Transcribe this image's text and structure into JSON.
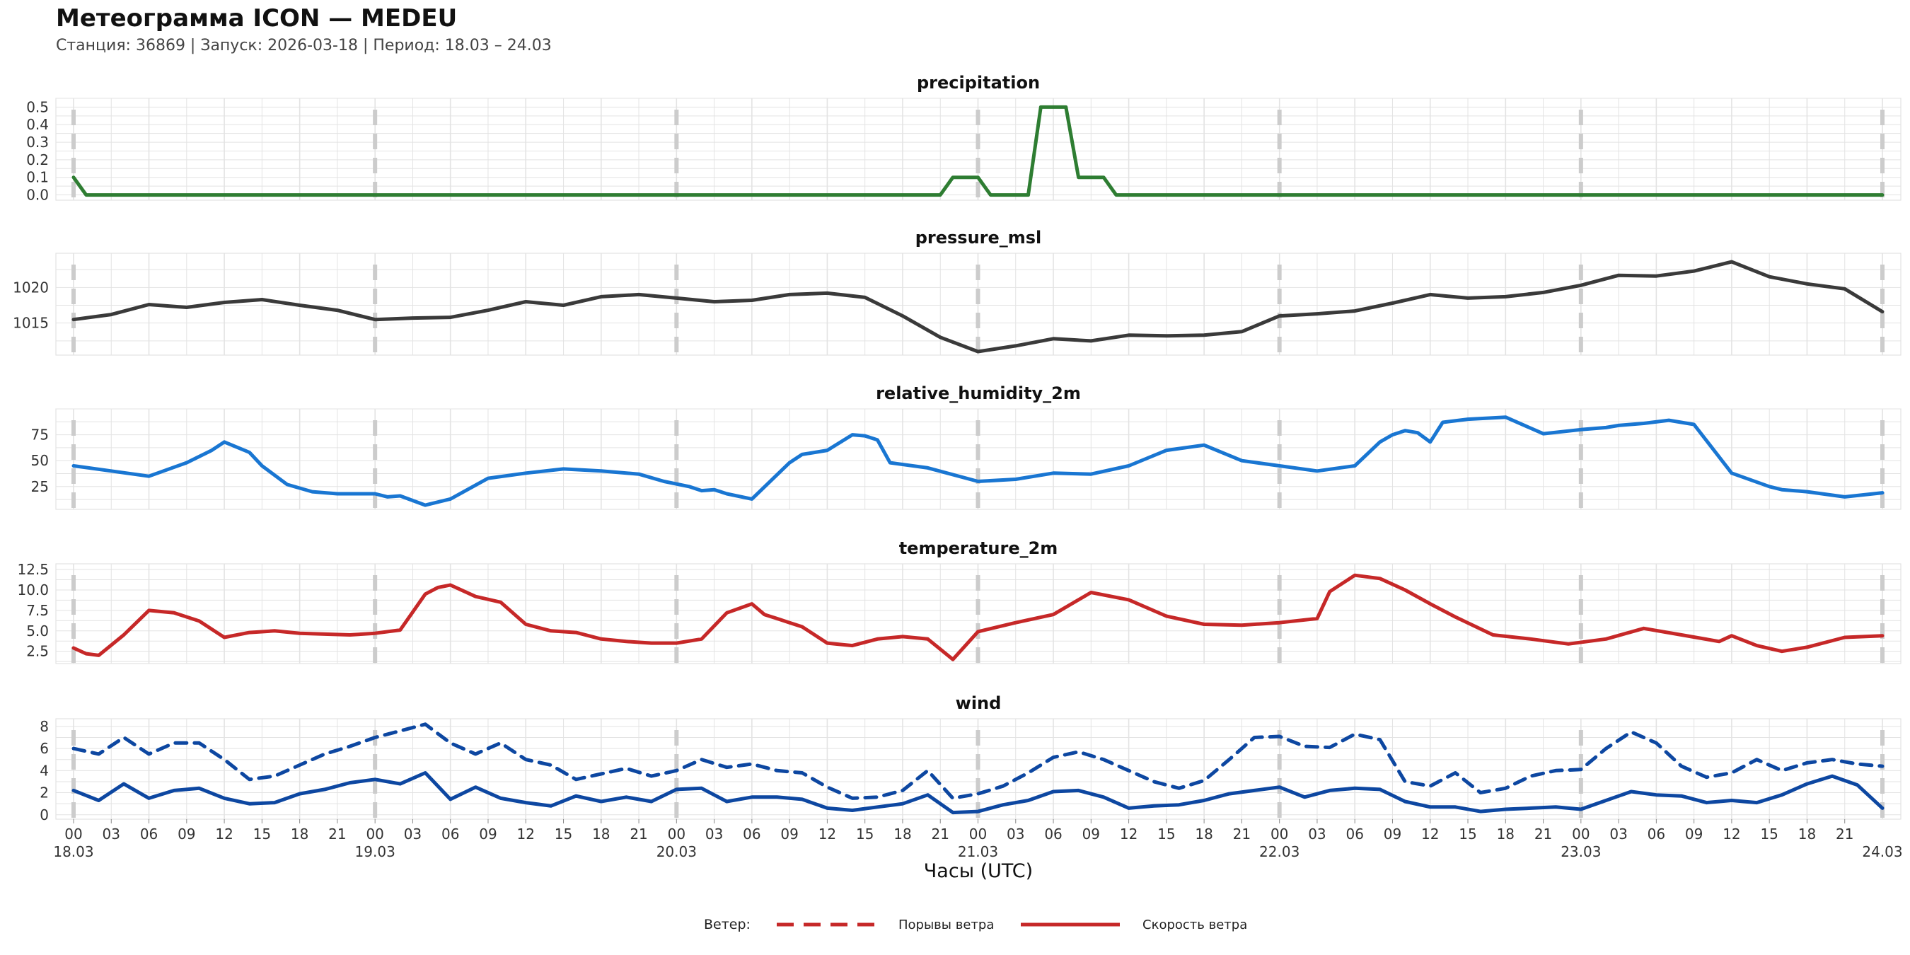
{
  "header": {
    "title": "Метеограмма ICON — MEDEU",
    "subtitle": "Станция: 36869  | Запуск: 2026-03-18  | Период: 18.03 – 24.03"
  },
  "colors": {
    "precipitation": "#2e7d32",
    "pressure": "#3a3a3a",
    "humidity": "#1976d2",
    "temperature": "#c62828",
    "wind": "#0d47a1",
    "legend_line": "#c62828",
    "grid": "#e3e3e3",
    "day_marker": "#cccccc"
  },
  "chart_data": [
    {
      "type": "line",
      "title": "precipitation",
      "ylim": [
        -0.03,
        0.55
      ],
      "yticks": [
        0.0,
        0.1,
        0.2,
        0.3,
        0.4,
        0.5
      ],
      "ytick_labels": [
        "0.0",
        "0.1",
        "0.2",
        "0.3",
        "0.4",
        "0.5"
      ],
      "series": [
        {
          "name": "precipitation",
          "x": [
            0,
            1,
            69,
            70,
            72,
            73,
            76,
            77,
            79,
            80,
            82,
            83,
            144
          ],
          "y": [
            0.1,
            0,
            0,
            0.1,
            0.1,
            0,
            0,
            0.5,
            0.5,
            0.1,
            0.1,
            0,
            0
          ]
        }
      ]
    },
    {
      "type": "line",
      "title": "pressure_msl",
      "ylim": [
        1010.5,
        1024.8
      ],
      "yticks": [
        1015,
        1020
      ],
      "ytick_labels": [
        "1015",
        "1020"
      ],
      "series": [
        {
          "name": "pressure_msl",
          "x": [
            0,
            3,
            6,
            9,
            12,
            15,
            18,
            21,
            24,
            27,
            30,
            33,
            36,
            39,
            42,
            45,
            48,
            51,
            54,
            57,
            60,
            63,
            66,
            69,
            72,
            75,
            78,
            81,
            84,
            87,
            90,
            93,
            96,
            99,
            102,
            105,
            108,
            111,
            114,
            117,
            120,
            123,
            126,
            129,
            132,
            135,
            138,
            141,
            144
          ],
          "y": [
            1015.5,
            1016.2,
            1017.6,
            1017.2,
            1017.9,
            1018.3,
            1017.5,
            1016.8,
            1015.5,
            1015.7,
            1015.8,
            1016.8,
            1018,
            1017.5,
            1018.7,
            1019,
            1018.5,
            1018,
            1018.2,
            1019,
            1019.2,
            1018.6,
            1016,
            1013,
            1011,
            1011.8,
            1012.8,
            1012.5,
            1013.3,
            1013.2,
            1013.3,
            1013.8,
            1016,
            1016.3,
            1016.7,
            1017.8,
            1019,
            1018.5,
            1018.7,
            1019.3,
            1020.3,
            1021.7,
            1021.6,
            1022.3,
            1023.6,
            1021.5,
            1020.5,
            1019.8,
            1016.6
          ]
        }
      ]
    },
    {
      "type": "line",
      "title": "relative_humidity_2m",
      "ylim": [
        3,
        100
      ],
      "yticks": [
        25,
        50,
        75
      ],
      "ytick_labels": [
        "25",
        "50",
        "75"
      ],
      "series": [
        {
          "name": "relative_humidity_2m",
          "x": [
            0,
            3,
            6,
            9,
            11,
            12,
            14,
            15,
            17,
            19,
            21,
            23,
            24,
            25,
            26,
            28,
            30,
            33,
            36,
            39,
            42,
            45,
            47,
            49,
            50,
            51,
            52,
            54,
            57,
            58,
            60,
            62,
            63,
            64,
            65,
            68,
            72,
            75,
            78,
            81,
            84,
            87,
            90,
            93,
            96,
            99,
            102,
            104,
            105,
            106,
            107,
            108,
            109,
            111,
            114,
            117,
            120,
            122,
            123,
            125,
            127,
            129,
            132,
            135,
            136,
            138,
            141,
            144
          ],
          "y": [
            45,
            40,
            35,
            48,
            60,
            68,
            58,
            45,
            27,
            20,
            18,
            18,
            18,
            15,
            16,
            7,
            13,
            33,
            38,
            42,
            40,
            37,
            30,
            25,
            21,
            22,
            18,
            13,
            48,
            56,
            60,
            75,
            74,
            70,
            48,
            43,
            30,
            32,
            38,
            37,
            45,
            60,
            65,
            50,
            45,
            40,
            45,
            68,
            75,
            79,
            77,
            68,
            87,
            90,
            92,
            76,
            80,
            82,
            84,
            86,
            89,
            85,
            38,
            25,
            22,
            20,
            15,
            19
          ]
        }
      ]
    },
    {
      "type": "line",
      "title": "temperature_2m",
      "ylim": [
        1,
        13.2
      ],
      "yticks": [
        2.5,
        5.0,
        7.5,
        10.0,
        12.5
      ],
      "ytick_labels": [
        "2.5",
        "5.0",
        "7.5",
        "10.0",
        "12.5"
      ],
      "series": [
        {
          "name": "temperature_2m",
          "x": [
            0,
            1,
            2,
            4,
            6,
            8,
            10,
            12,
            14,
            16,
            18,
            20,
            22,
            24,
            26,
            28,
            29,
            30,
            32,
            34,
            36,
            38,
            40,
            42,
            44,
            46,
            48,
            50,
            52,
            54,
            55,
            56,
            57,
            58,
            60,
            62,
            64,
            66,
            68,
            70,
            72,
            75,
            78,
            81,
            84,
            87,
            90,
            93,
            96,
            99,
            100,
            102,
            104,
            106,
            108,
            110,
            113,
            116,
            119,
            122,
            125,
            128,
            131,
            132,
            134,
            136,
            138,
            141,
            144
          ],
          "y": [
            2.9,
            2.2,
            2,
            4.5,
            7.5,
            7.2,
            6.2,
            4.2,
            4.8,
            5,
            4.7,
            4.6,
            4.5,
            4.7,
            5.1,
            9.5,
            10.3,
            10.6,
            9.2,
            8.5,
            5.8,
            5,
            4.8,
            4,
            3.7,
            3.5,
            3.5,
            4,
            7.2,
            8.3,
            7,
            6.5,
            6,
            5.5,
            3.5,
            3.2,
            4,
            4.3,
            4,
            1.5,
            4.9,
            6,
            7,
            9.7,
            8.8,
            6.8,
            5.8,
            5.7,
            6,
            6.5,
            9.8,
            11.8,
            11.4,
            10,
            8.3,
            6.7,
            4.5,
            4,
            3.4,
            4,
            5.3,
            4.5,
            3.7,
            4.4,
            3.2,
            2.5,
            3,
            4.2,
            4.4
          ]
        }
      ]
    },
    {
      "type": "line",
      "title": "wind",
      "ylim": [
        -0.4,
        8.7
      ],
      "yticks": [
        0,
        2,
        4,
        6,
        8
      ],
      "ytick_labels": [
        "0",
        "2",
        "4",
        "6",
        "8"
      ],
      "series": [
        {
          "name": "Порывы ветра",
          "style": "dashed",
          "x": [
            0,
            2,
            4,
            6,
            8,
            10,
            12,
            14,
            16,
            18,
            20,
            22,
            24,
            26,
            28,
            30,
            32,
            34,
            36,
            38,
            40,
            42,
            44,
            46,
            48,
            50,
            52,
            54,
            56,
            58,
            60,
            62,
            64,
            66,
            68,
            70,
            72,
            74,
            76,
            78,
            80,
            82,
            84,
            86,
            88,
            90,
            92,
            94,
            96,
            98,
            100,
            102,
            104,
            106,
            108,
            110,
            112,
            114,
            116,
            118,
            120,
            122,
            124,
            126,
            128,
            130,
            132,
            134,
            136,
            138,
            140,
            142,
            144
          ],
          "y": [
            6,
            5.5,
            7,
            5.5,
            6.5,
            6.5,
            5,
            3.2,
            3.5,
            4.5,
            5.5,
            6.2,
            7,
            7.6,
            8.2,
            6.5,
            5.5,
            6.5,
            5,
            4.5,
            3.2,
            3.7,
            4.2,
            3.5,
            4,
            5,
            4.3,
            4.6,
            4,
            3.8,
            2.5,
            1.5,
            1.6,
            2.2,
            4,
            1.5,
            1.9,
            2.6,
            3.8,
            5.2,
            5.7,
            5,
            4,
            3,
            2.4,
            3.1,
            5,
            7,
            7.1,
            6.2,
            6.1,
            7.3,
            6.8,
            3,
            2.6,
            3.8,
            2,
            2.4,
            3.5,
            4,
            4.1,
            6,
            7.5,
            6.5,
            4.4,
            3.4,
            3.8,
            5,
            4,
            4.7,
            5,
            4.6,
            4.4
          ]
        },
        {
          "name": "Скорость ветра",
          "style": "solid",
          "x": [
            0,
            2,
            4,
            6,
            8,
            10,
            12,
            14,
            16,
            18,
            20,
            22,
            24,
            26,
            28,
            30,
            32,
            34,
            36,
            38,
            40,
            42,
            44,
            46,
            48,
            50,
            52,
            54,
            56,
            58,
            60,
            62,
            64,
            66,
            68,
            70,
            72,
            74,
            76,
            78,
            80,
            82,
            84,
            86,
            88,
            90,
            92,
            94,
            96,
            98,
            100,
            102,
            104,
            106,
            108,
            110,
            112,
            114,
            116,
            118,
            120,
            122,
            124,
            126,
            128,
            130,
            132,
            134,
            136,
            138,
            140,
            142,
            144
          ],
          "y": [
            2.2,
            1.3,
            2.8,
            1.5,
            2.2,
            2.4,
            1.5,
            1,
            1.1,
            1.9,
            2.3,
            2.9,
            3.2,
            2.8,
            3.8,
            1.4,
            2.5,
            1.5,
            1.1,
            0.8,
            1.7,
            1.2,
            1.6,
            1.2,
            2.3,
            2.4,
            1.2,
            1.6,
            1.6,
            1.4,
            0.6,
            0.4,
            0.7,
            1,
            1.8,
            0.2,
            0.3,
            0.9,
            1.3,
            2.1,
            2.2,
            1.6,
            0.6,
            0.8,
            0.9,
            1.3,
            1.9,
            2.2,
            2.5,
            1.6,
            2.2,
            2.4,
            2.3,
            1.2,
            0.7,
            0.7,
            0.3,
            0.5,
            0.6,
            0.7,
            0.5,
            1.3,
            2.1,
            1.8,
            1.7,
            1.1,
            1.3,
            1.1,
            1.8,
            2.8,
            3.5,
            2.7,
            0.6
          ]
        }
      ]
    }
  ],
  "axis": {
    "xlabel": "Часы (UTC)",
    "xmax_hours": 144,
    "hour_labels": [
      "00",
      "03",
      "06",
      "09",
      "12",
      "15",
      "18",
      "21"
    ],
    "day_labels": [
      "18.03",
      "19.03",
      "20.03",
      "21.03",
      "22.03",
      "23.03",
      "24.03"
    ]
  },
  "legend": {
    "title": "Ветер:",
    "gusts_label": "Порывы ветра",
    "speed_label": "Скорость ветра"
  }
}
